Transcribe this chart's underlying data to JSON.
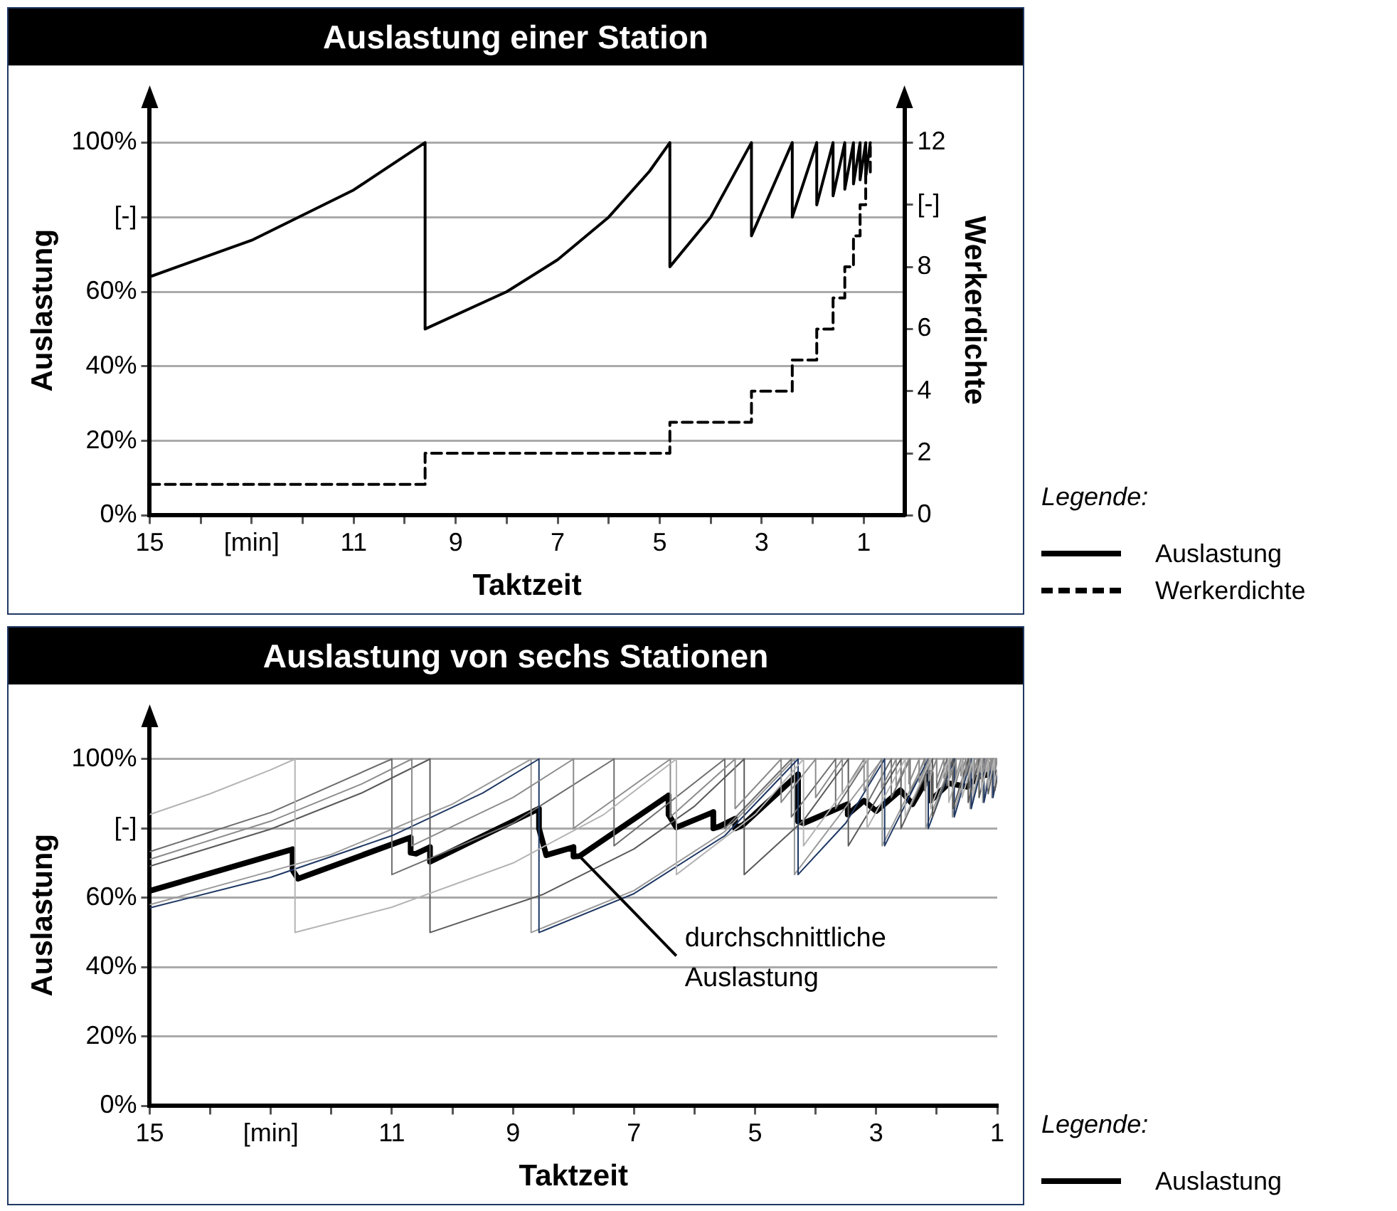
{
  "chart_data": [
    {
      "type": "line",
      "title": "Auslastung einer Station",
      "xlabel": "Taktzeit",
      "ylabel": "Auslastung",
      "y2label": "Werkerdichte",
      "legend_title": "Legende:",
      "legend": "right",
      "grid": "y",
      "marker": "none",
      "xlim": [
        15,
        0.2
      ],
      "xticks": [
        15,
        {
          "value": 14,
          "label": null
        },
        {
          "value": 13,
          "label": "[min]"
        },
        {
          "value": 12,
          "label": null
        },
        11,
        {
          "value": 10,
          "label": null
        },
        9,
        {
          "value": 8,
          "label": null
        },
        7,
        {
          "value": 6,
          "label": null
        },
        5,
        {
          "value": 4,
          "label": null
        },
        3,
        {
          "value": 2,
          "label": null
        },
        1
      ],
      "ylim": [
        0,
        110
      ],
      "yticks": [
        {
          "value": 0,
          "label": "0%"
        },
        {
          "value": 20,
          "label": "20%"
        },
        {
          "value": 40,
          "label": "40%"
        },
        {
          "value": 60,
          "label": "60%"
        },
        {
          "value": 80,
          "label": "[-]"
        },
        {
          "value": 100,
          "label": "100%"
        }
      ],
      "y2lim": [
        0,
        13.2
      ],
      "y2ticks": [
        0,
        2,
        4,
        6,
        8,
        {
          "value": 10,
          "label": "[-]"
        },
        12
      ],
      "series": [
        {
          "name": "Auslastung",
          "color": "#000000",
          "line_style": "solid",
          "x": [
            15,
            13,
            11,
            9.6,
            9.6,
            8,
            7,
            6,
            5.2,
            4.8,
            4.8,
            4,
            3.2,
            3.2,
            2.4,
            2.4,
            1.92,
            1.92,
            1.6,
            1.6,
            1.37,
            1.37,
            1.2,
            1.2,
            1.07,
            1.07,
            0.96,
            0.96,
            0.87
          ],
          "values": [
            64,
            73.8,
            87.3,
            100,
            50,
            60,
            68.6,
            80,
            92.3,
            100,
            66.7,
            80,
            100,
            75,
            100,
            80,
            100,
            83.3,
            100,
            85.7,
            100,
            87.5,
            100,
            88.9,
            100,
            90,
            100,
            90.9,
            100
          ]
        },
        {
          "name": "Werkerdichte",
          "type": "step",
          "axis": "y2",
          "color": "#000000",
          "line_style": "dashed",
          "x": [
            15,
            9.6,
            4.8,
            3.2,
            2.4,
            1.92,
            1.6,
            1.37,
            1.2,
            1.07,
            0.96,
            0.87
          ],
          "values": [
            1,
            2,
            3,
            4,
            5,
            6,
            7,
            8,
            9,
            10,
            11,
            12
          ]
        }
      ]
    },
    {
      "type": "line",
      "title": "Auslastung von sechs Stationen",
      "xlabel": "Taktzeit",
      "ylabel": "Auslastung",
      "legend_title": "Legende:",
      "legend": "right",
      "grid": "y",
      "marker": "none",
      "xlim": [
        15,
        1
      ],
      "xticks": [
        15,
        {
          "value": 14,
          "label": null
        },
        {
          "value": 13,
          "label": "[min]"
        },
        {
          "value": 12,
          "label": null
        },
        11,
        {
          "value": 10,
          "label": null
        },
        9,
        {
          "value": 8,
          "label": null
        },
        7,
        {
          "value": 6,
          "label": null
        },
        5,
        {
          "value": 4,
          "label": null
        },
        3,
        {
          "value": 2,
          "label": null
        },
        1
      ],
      "ylim": [
        0,
        110
      ],
      "yticks": [
        {
          "value": 0,
          "label": "0%"
        },
        {
          "value": 20,
          "label": "20%"
        },
        {
          "value": 40,
          "label": "40%"
        },
        {
          "value": 60,
          "label": "60%"
        },
        {
          "value": 80,
          "label": "[-]"
        },
        {
          "value": 100,
          "label": "100%"
        }
      ],
      "annotations": [
        {
          "text": "durchschnittliche\nAuslastung",
          "x": 7.9,
          "y": 72
        }
      ],
      "series": [
        {
          "color": "#b4b4b4",
          "line_style": "solid",
          "x": [
            15,
            14,
            13,
            12.6,
            12.6,
            11,
            9,
            7.5,
            6.3,
            6.3,
            5,
            4.2,
            4.2,
            3.15,
            3.15,
            2.52,
            2.52,
            2.1,
            2.1,
            1.8,
            1.8,
            1.58,
            1.58,
            1.4,
            1.4,
            1.26,
            1.26,
            1.15,
            1.15,
            1.05,
            1.05,
            1
          ],
          "values": [
            84,
            90,
            96.9,
            100,
            50,
            57.3,
            70,
            84,
            100,
            66.7,
            84,
            100,
            75,
            100,
            80,
            100,
            83.3,
            100,
            85.7,
            100,
            87.5,
            100,
            88.9,
            100,
            90,
            100,
            90.9,
            100,
            91.7,
            100,
            92.3,
            96.9
          ]
        },
        {
          "color": "#8c8c8c",
          "line_style": "solid",
          "x": [
            15,
            13,
            11.5,
            10.67,
            10.67,
            9,
            8,
            8,
            6.4,
            6.4,
            5.33,
            5.33,
            4.57,
            4.57,
            4,
            4,
            3.56,
            3.56,
            3.2,
            3.2,
            2.91,
            2.91,
            2.67,
            2.67,
            2.46,
            2.46,
            2.29,
            2.29,
            2.13,
            2.13,
            2,
            2,
            1.88,
            1.88,
            1.78,
            1.78,
            1.68,
            1.68,
            1.6,
            1.6,
            1.52,
            1.52,
            1.45,
            1.45,
            1.39,
            1.39,
            1.33,
            1.33,
            1.28,
            1.28,
            1.23,
            1.23,
            1.19,
            1.19,
            1.14,
            1.14,
            1.1,
            1.1,
            1.07,
            1.07,
            1.03,
            1.03,
            1
          ],
          "values": [
            71.1,
            82.1,
            92.8,
            100,
            75,
            88.9,
            100,
            80,
            100,
            83.3,
            100,
            85.7,
            100,
            87.5,
            100,
            88.9,
            100,
            90,
            100,
            90.9,
            100,
            91.7,
            100,
            92.3,
            100,
            92.9,
            100,
            93.3,
            100,
            93.8,
            100,
            94.1,
            100,
            94.4,
            100,
            94.7,
            100,
            95,
            100,
            95.2,
            100,
            95.5,
            100,
            95.7,
            100,
            95.8,
            100,
            96,
            100,
            96.2,
            100,
            96.3,
            100,
            96.4,
            100,
            96.6,
            100,
            96.7,
            100,
            96.8,
            100,
            96.9,
            100
          ]
        },
        {
          "color": "#5a5a5a",
          "line_style": "solid",
          "x": [
            15,
            13,
            11.5,
            10.37,
            10.37,
            8.5,
            7,
            6,
            5.18,
            5.18,
            4.2,
            3.46,
            3.46,
            2.59,
            2.59,
            2.07,
            2.07,
            1.73,
            1.73,
            1.48,
            1.48,
            1.3,
            1.3,
            1.15,
            1.15,
            1.04,
            1.04,
            1
          ],
          "values": [
            69.1,
            79.8,
            90.2,
            100,
            50,
            61,
            74.1,
            86.4,
            100,
            66.7,
            82.3,
            100,
            75,
            100,
            80,
            100,
            83.3,
            100,
            85.7,
            100,
            87.5,
            100,
            88.9,
            100,
            90,
            100,
            90.9,
            94.3
          ]
        },
        {
          "color": "#1f3864",
          "line_style": "solid",
          "x": [
            15,
            13,
            11,
            9.5,
            8.57,
            8.57,
            7,
            5.5,
            4.29,
            4.29,
            3.5,
            2.86,
            2.86,
            2.14,
            2.14,
            1.71,
            1.71,
            1.43,
            1.43,
            1.22,
            1.22,
            1.07,
            1.07,
            1
          ],
          "values": [
            57.1,
            65.9,
            77.9,
            90.2,
            100,
            50,
            61.2,
            77.9,
            100,
            66.7,
            81.6,
            100,
            75,
            100,
            80,
            100,
            83.3,
            100,
            85.7,
            100,
            87.5,
            100,
            88.9,
            95.2
          ]
        },
        {
          "color": "#9a9a9a",
          "line_style": "solid",
          "x": [
            15,
            12,
            10,
            8.7,
            8.7,
            7,
            5.5,
            4.35,
            4.35,
            2.9,
            2.9,
            2.18,
            2.18,
            1.74,
            1.74,
            1.45,
            1.45,
            1.24,
            1.24,
            1.09,
            1.09,
            1
          ],
          "values": [
            58,
            72.5,
            87,
            100,
            50,
            62.1,
            79.1,
            100,
            66.7,
            100,
            75,
            100,
            80,
            100,
            83.3,
            100,
            85.7,
            100,
            87.5,
            100,
            88.9,
            96.7
          ]
        },
        {
          "color": "#6e6e6e",
          "line_style": "solid",
          "x": [
            15,
            13,
            11,
            11,
            9,
            7.33,
            7.33,
            5.5,
            5.5,
            4.4,
            4.4,
            3.67,
            3.67,
            3.14,
            3.14,
            2.75,
            2.75,
            2.44,
            2.44,
            2.2,
            2.2,
            2,
            2,
            1.83,
            1.83,
            1.69,
            1.69,
            1.57,
            1.57,
            1.47,
            1.47,
            1.38,
            1.38,
            1.29,
            1.29,
            1.22,
            1.22,
            1.16,
            1.16,
            1.1,
            1.1,
            1.05,
            1.05,
            1
          ],
          "values": [
            73.3,
            84.6,
            100,
            66.7,
            81.5,
            100,
            75,
            100,
            80,
            100,
            83.3,
            100,
            85.7,
            100,
            87.5,
            100,
            88.9,
            100,
            90,
            100,
            90.9,
            100,
            91.7,
            100,
            92.3,
            100,
            92.9,
            100,
            93.3,
            100,
            93.8,
            100,
            94.1,
            100,
            94.4,
            100,
            94.7,
            100,
            95,
            100,
            95.2,
            100,
            95.5,
            100
          ]
        },
        {
          "name": "Auslastung",
          "color": "#000000",
          "line_style": "solid",
          "x": [
            15,
            12.64,
            12.64,
            12.55,
            10.69,
            10.69,
            10.6,
            10.37,
            10.37,
            8.57,
            8.57,
            8.45,
            8,
            8,
            7.9,
            6.43,
            6.43,
            6.3,
            5.69,
            5.69,
            5.6,
            5.33,
            5.33,
            5.2,
            4.29,
            4.29,
            4.2,
            3.47,
            3.47,
            3.2,
            3,
            2.6,
            2.4,
            2.1,
            2.1,
            1.8,
            1.5,
            1.3,
            1
          ],
          "values": [
            62,
            74,
            68,
            65.5,
            77.4,
            73,
            72.7,
            74.6,
            70.4,
            85.7,
            80,
            72.3,
            74.6,
            71.9,
            72,
            89.5,
            84,
            80.3,
            84.7,
            80,
            80.5,
            82.8,
            80,
            81,
            95.6,
            82,
            81.5,
            87,
            84,
            88,
            85,
            91,
            87,
            96,
            88,
            93,
            92,
            95,
            96
          ]
        }
      ]
    }
  ]
}
